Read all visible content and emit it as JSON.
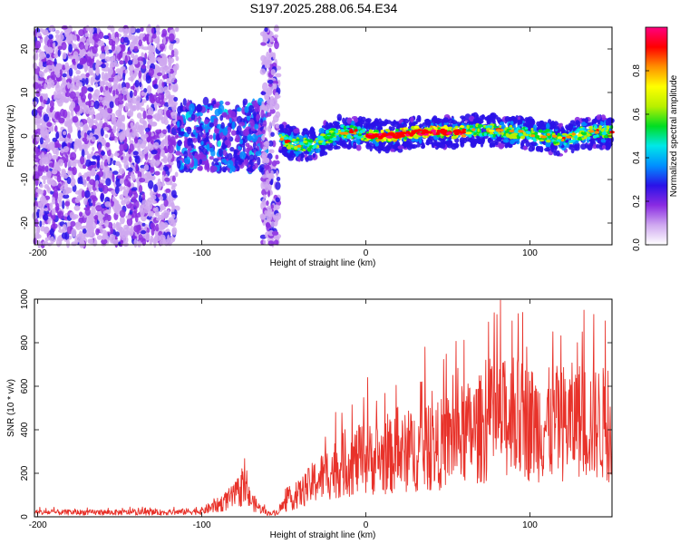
{
  "title": "S197.2025.288.06.54.E34",
  "chart_data": [
    {
      "type": "heatmap",
      "name": "spectrogram",
      "xlabel": "Height of straight line (km)",
      "ylabel": "Frequency (Hz)",
      "xlim": [
        -202,
        150
      ],
      "ylim": [
        -25,
        25
      ],
      "xticks": [
        -200,
        -100,
        0,
        100
      ],
      "xtick_labels": [
        "-200",
        "-100",
        "0",
        "100"
      ],
      "yticks": [
        -20,
        -10,
        0,
        10,
        20
      ],
      "ytick_labels": [
        "-20",
        "-10",
        "0",
        "10",
        "20"
      ],
      "colorbar": {
        "label": "Normalized spectral amplitude",
        "range": [
          0,
          1
        ],
        "ticks": [
          0.0,
          0.2,
          0.4,
          0.6,
          0.8
        ],
        "tick_labels": [
          "0.0",
          "0.2",
          "0.4",
          "0.6",
          "0.8"
        ],
        "colormap": [
          "#ffffff",
          "#cfa8f0",
          "#8a2be2",
          "#2a12e8",
          "#0090ff",
          "#00e8e8",
          "#00dd22",
          "#b8f000",
          "#ffff00",
          "#ff9000",
          "#ff0000",
          "#ff0080"
        ]
      },
      "ridge": {
        "x": [
          -52,
          -45,
          -35,
          -25,
          -15,
          -5,
          0,
          10,
          20,
          30,
          40,
          50,
          60,
          70,
          80,
          90,
          100,
          110,
          120,
          130,
          140,
          150
        ],
        "y": [
          -0.5,
          -1.8,
          -2.0,
          -0.5,
          1.0,
          0.8,
          0.2,
          0.0,
          0.2,
          0.8,
          0.9,
          0.9,
          1.0,
          1.5,
          1.2,
          0.8,
          0.5,
          0.0,
          -1.0,
          0.5,
          1.0,
          0.8
        ]
      },
      "regions": [
        {
          "x": [
            -202,
            -115
          ],
          "y": [
            -25,
            25
          ],
          "level": "low"
        },
        {
          "x": [
            -115,
            -60
          ],
          "y": [
            -8,
            8
          ],
          "level": "medium"
        },
        {
          "x": [
            -63,
            -53
          ],
          "y": [
            -25,
            25
          ],
          "level": "low"
        }
      ]
    },
    {
      "type": "line",
      "name": "snr",
      "xlabel": "Height of straight line (km)",
      "ylabel": "SNR (10 * v/v)",
      "xlim": [
        -202,
        150
      ],
      "ylim": [
        0,
        1000
      ],
      "xticks": [
        -200,
        -100,
        0,
        100
      ],
      "xtick_labels": [
        "-200",
        "-100",
        "0",
        "100"
      ],
      "yticks": [
        0,
        200,
        400,
        600,
        800,
        1000
      ],
      "ytick_labels": [
        "0",
        "200",
        "400",
        "600",
        "800",
        "1000"
      ],
      "color": "#e8322a",
      "envelope": {
        "x": [
          -202,
          -120,
          -100,
          -90,
          -80,
          -75,
          -70,
          -65,
          -60,
          -55,
          -50,
          -40,
          -30,
          -20,
          -10,
          0,
          10,
          20,
          30,
          40,
          50,
          60,
          70,
          80,
          90,
          100,
          110,
          120,
          130,
          140,
          150
        ],
        "y": [
          30,
          30,
          40,
          80,
          140,
          200,
          110,
          60,
          25,
          25,
          80,
          160,
          250,
          320,
          370,
          390,
          400,
          420,
          450,
          460,
          520,
          560,
          600,
          640,
          680,
          640,
          620,
          640,
          650,
          640,
          620
        ]
      },
      "peaks": [
        {
          "x": 1,
          "y": 640
        },
        {
          "x": 34,
          "y": 620
        },
        {
          "x": 36,
          "y": 780
        },
        {
          "x": 53,
          "y": 650
        },
        {
          "x": 73,
          "y": 720
        },
        {
          "x": 82,
          "y": 995
        },
        {
          "x": 89,
          "y": 900
        },
        {
          "x": 98,
          "y": 780
        },
        {
          "x": 114,
          "y": 850
        },
        {
          "x": 129,
          "y": 800
        },
        {
          "x": 139,
          "y": 930
        },
        {
          "x": 146,
          "y": 900
        }
      ]
    }
  ]
}
